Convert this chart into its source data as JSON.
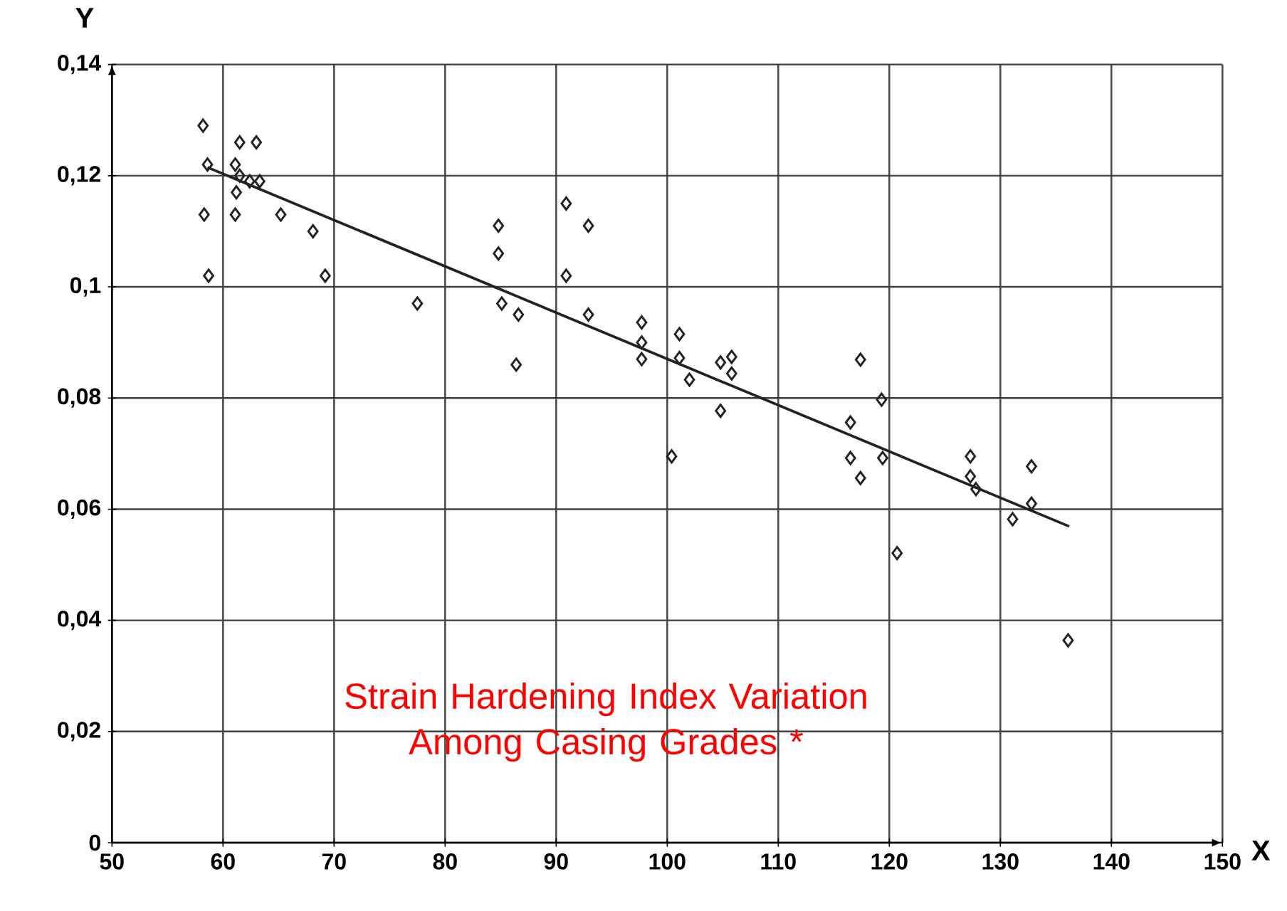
{
  "chart_data": {
    "type": "scatter",
    "xlabel": "X",
    "ylabel": "Y",
    "annotations": [
      "Strain Hardening Index Variation Among Casing Grades *"
    ],
    "xlim": [
      50,
      150
    ],
    "ylim": [
      0,
      0.14
    ],
    "xticks": [
      50,
      60,
      70,
      80,
      90,
      100,
      110,
      120,
      130,
      140,
      150
    ],
    "yticks": [
      {
        "value": 0,
        "label": "0"
      },
      {
        "value": 0.02,
        "label": "0,02"
      },
      {
        "value": 0.04,
        "label": "0,04"
      },
      {
        "value": 0.06,
        "label": "0,06"
      },
      {
        "value": 0.08,
        "label": "0,08"
      },
      {
        "value": 0.1,
        "label": "0,1"
      },
      {
        "value": 0.12,
        "label": "0,12"
      },
      {
        "value": 0.14,
        "label": "0,14"
      }
    ],
    "grid": true,
    "series": [
      {
        "marker": "diamond",
        "color": "#222222",
        "x": [
          58.2,
          58.6,
          61.5,
          63.0,
          61.1,
          61.5,
          62.4,
          63.3,
          61.2,
          58.3,
          61.1,
          65.2,
          68.1,
          58.7,
          69.2,
          77.5,
          84.8,
          84.8,
          85.1,
          86.6,
          86.4,
          90.9,
          92.9,
          90.9,
          92.9,
          97.7,
          97.7,
          97.7,
          101.1,
          101.1,
          102.0,
          104.8,
          105.8,
          105.8,
          104.8,
          100.4,
          117.4,
          119.3,
          116.5,
          116.5,
          119.4,
          117.4,
          120.7,
          127.3,
          127.3,
          127.8,
          132.8,
          132.8,
          131.1,
          136.1
        ],
        "values": [
          0.129,
          0.122,
          0.126,
          0.126,
          0.122,
          0.12,
          0.119,
          0.119,
          0.117,
          0.113,
          0.113,
          0.113,
          0.11,
          0.102,
          0.102,
          0.097,
          0.111,
          0.106,
          0.097,
          0.095,
          0.086,
          0.115,
          0.111,
          0.102,
          0.095,
          0.0936,
          0.09,
          0.087,
          0.0915,
          0.0872,
          0.0833,
          0.0864,
          0.0874,
          0.0844,
          0.0777,
          0.0695,
          0.0869,
          0.0797,
          0.0756,
          0.0692,
          0.0692,
          0.0656,
          0.0521,
          0.0695,
          0.0659,
          0.0636,
          0.0677,
          0.061,
          0.0582,
          0.0364
        ]
      },
      {
        "type": "line",
        "marker": "none",
        "color": "#222222",
        "x": [
          58.6,
          136.2
        ],
        "values": [
          0.1215,
          0.0569
        ]
      }
    ]
  }
}
